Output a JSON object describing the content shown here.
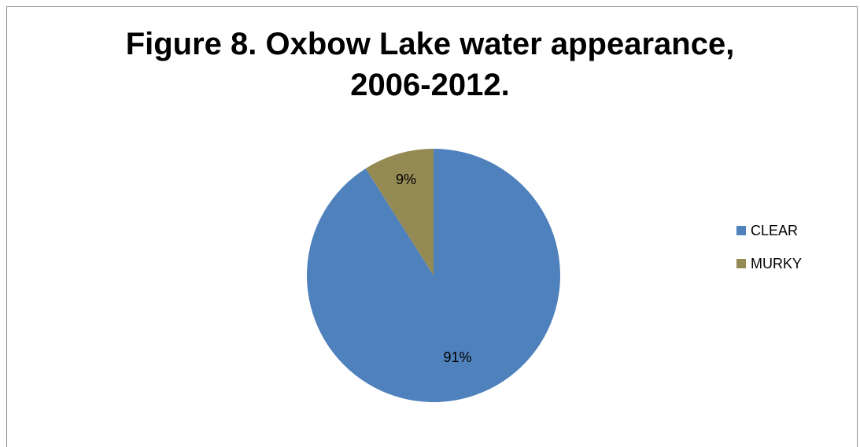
{
  "chart_data": {
    "type": "pie",
    "title_lines": [
      "Figure 8. Oxbow Lake water appearance,",
      "2006-2012."
    ],
    "categories": [
      "CLEAR",
      "MURKY"
    ],
    "values": [
      91,
      9
    ],
    "labels": [
      "91%",
      "9%"
    ],
    "colors": [
      "#4f81bd",
      "#948a54"
    ],
    "legend_position": "right"
  }
}
